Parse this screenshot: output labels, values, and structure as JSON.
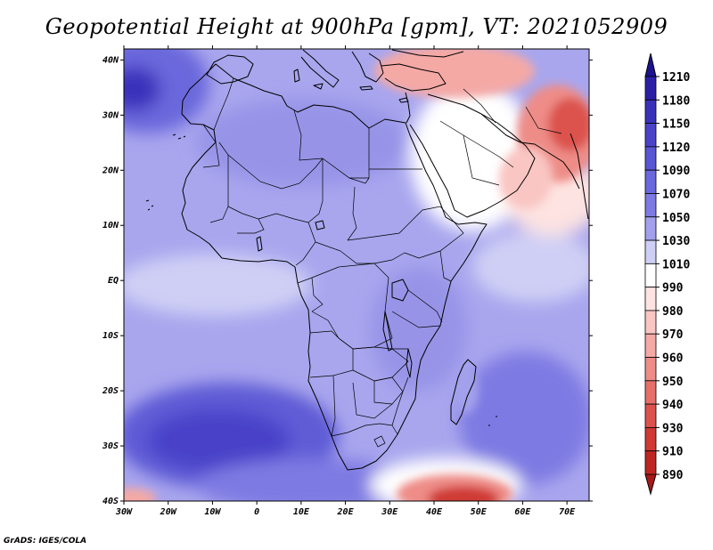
{
  "title": "Geopotential Height at 900hPa [gpm], VT: 2021052909",
  "credit": "GrADS: IGES/COLA",
  "map": {
    "lat_labels": [
      {
        "lat": 40,
        "text": "40N"
      },
      {
        "lat": 30,
        "text": "30N"
      },
      {
        "lat": 20,
        "text": "20N"
      },
      {
        "lat": 10,
        "text": "10N"
      },
      {
        "lat": 0,
        "text": "EQ"
      },
      {
        "lat": -10,
        "text": "10S"
      },
      {
        "lat": -20,
        "text": "20S"
      },
      {
        "lat": -30,
        "text": "30S"
      },
      {
        "lat": -40,
        "text": "40S"
      }
    ],
    "lon_labels": [
      {
        "lon": -30,
        "text": "30W"
      },
      {
        "lon": -20,
        "text": "20W"
      },
      {
        "lon": -10,
        "text": "10W"
      },
      {
        "lon": 0,
        "text": "0"
      },
      {
        "lon": 10,
        "text": "10E"
      },
      {
        "lon": 20,
        "text": "20E"
      },
      {
        "lon": 30,
        "text": "30E"
      },
      {
        "lon": 40,
        "text": "40E"
      },
      {
        "lon": 50,
        "text": "50E"
      },
      {
        "lon": 60,
        "text": "60E"
      },
      {
        "lon": 70,
        "text": "70E"
      }
    ]
  },
  "colorbar": {
    "top_label": "1210",
    "levels": [
      {
        "label": "1180",
        "color": "#2b1fa8"
      },
      {
        "label": "1150",
        "color": "#3a31bb"
      },
      {
        "label": "1120",
        "color": "#4a43c9"
      },
      {
        "label": "1090",
        "color": "#5a55d3"
      },
      {
        "label": "1070",
        "color": "#6b67dc"
      },
      {
        "label": "1050",
        "color": "#7e7ae3"
      },
      {
        "label": "1030",
        "color": "#a3a1ec"
      },
      {
        "label": "1010",
        "color": "#cfcff5"
      },
      {
        "label": "990",
        "color": "#ffffff"
      },
      {
        "label": "980",
        "color": "#fde3e1"
      },
      {
        "label": "970",
        "color": "#f9c6c3"
      },
      {
        "label": "960",
        "color": "#f4a9a5"
      },
      {
        "label": "950",
        "color": "#ee8c87"
      },
      {
        "label": "940",
        "color": "#e66f6a"
      },
      {
        "label": "930",
        "color": "#dc524d"
      },
      {
        "label": "910",
        "color": "#cf3a35"
      },
      {
        "label": "890",
        "color": "#bd2622"
      }
    ],
    "top_color": "#1c128f",
    "bottom_color": "#a8181a"
  }
}
